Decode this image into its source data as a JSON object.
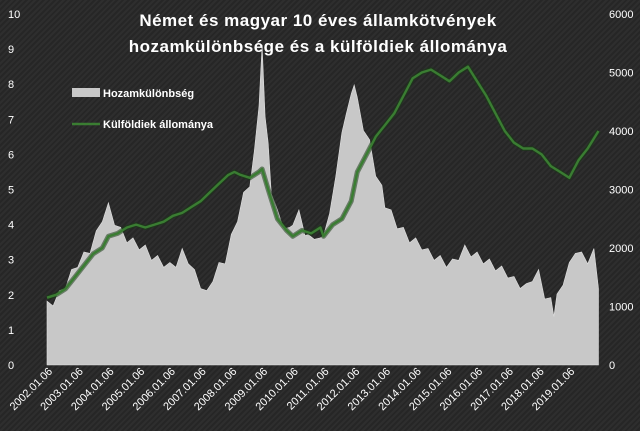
{
  "chart_data": {
    "type": "area+line",
    "title_lines": [
      "Német és magyar  10 éves államkötvények",
      "hozamkülönbsége  és a külföldiek  állománya"
    ],
    "x_ticks": [
      "2002.01.06",
      "2003.01.06",
      "2004.01.06",
      "2005.01.06",
      "2006.01.06",
      "2007.01.06",
      "2008.01.06",
      "2009.01.06",
      "2010.01.06",
      "2011.01.06",
      "2012.01.06",
      "2013.01.06",
      "2014.01.06",
      "2015.01.06",
      "2016.01.06",
      "2017.01.06",
      "2018.01.06",
      "2019.01.06"
    ],
    "y_left": {
      "min": 0,
      "max": 10,
      "ticks": [
        "0",
        "1",
        "2",
        "3",
        "4",
        "5",
        "6",
        "7",
        "8",
        "9",
        "10"
      ]
    },
    "y_right": {
      "min": 0,
      "max": 6000,
      "ticks": [
        "0",
        "1000",
        "2000",
        "3000",
        "4000",
        "5000",
        "6000"
      ]
    },
    "legend": {
      "placement": "upper-left"
    },
    "series": [
      {
        "name": "Hozamkülönbség",
        "kind": "area",
        "color": "#c8c8c8",
        "axis": "left",
        "x": [
          2002.0,
          2002.2,
          2002.4,
          2002.6,
          2002.8,
          2003.0,
          2003.2,
          2003.4,
          2003.6,
          2003.8,
          2004.0,
          2004.2,
          2004.4,
          2004.6,
          2004.8,
          2005.0,
          2005.2,
          2005.4,
          2005.6,
          2005.8,
          2006.0,
          2006.2,
          2006.4,
          2006.6,
          2006.8,
          2007.0,
          2007.2,
          2007.4,
          2007.6,
          2007.8,
          2008.0,
          2008.2,
          2008.4,
          2008.6,
          2008.75,
          2008.9,
          2009.0,
          2009.1,
          2009.2,
          2009.3,
          2009.5,
          2009.7,
          2009.9,
          2010.0,
          2010.2,
          2010.4,
          2010.5,
          2010.7,
          2010.9,
          2011.0,
          2011.2,
          2011.4,
          2011.6,
          2011.75,
          2011.9,
          2012.0,
          2012.1,
          2012.3,
          2012.5,
          2012.7,
          2012.9,
          2013.0,
          2013.2,
          2013.4,
          2013.6,
          2013.8,
          2014.0,
          2014.2,
          2014.4,
          2014.6,
          2014.8,
          2015.0,
          2015.2,
          2015.4,
          2015.6,
          2015.8,
          2016.0,
          2016.2,
          2016.4,
          2016.6,
          2016.8,
          2017.0,
          2017.2,
          2017.4,
          2017.6,
          2017.8,
          2018.0,
          2018.2,
          2018.4,
          2018.5,
          2018.6,
          2018.8,
          2019.0,
          2019.2,
          2019.4,
          2019.6,
          2019.8,
          2019.95
        ],
        "values": [
          1.7,
          1.8,
          2.0,
          2.3,
          2.6,
          2.9,
          3.1,
          3.3,
          3.7,
          4.2,
          4.5,
          4.1,
          3.8,
          3.6,
          3.5,
          3.4,
          3.3,
          3.1,
          3.0,
          2.9,
          2.8,
          2.9,
          3.2,
          3.0,
          2.6,
          2.3,
          2.0,
          2.5,
          2.8,
          3.0,
          3.6,
          4.2,
          4.8,
          5.2,
          6.0,
          7.5,
          9.0,
          7.2,
          6.2,
          5.0,
          4.3,
          4.0,
          3.8,
          4.1,
          4.3,
          3.8,
          3.6,
          3.7,
          3.5,
          3.8,
          4.2,
          5.5,
          6.5,
          7.3,
          7.6,
          8.1,
          7.5,
          6.8,
          6.3,
          5.5,
          5.0,
          4.6,
          4.3,
          4.0,
          3.8,
          3.6,
          3.5,
          3.4,
          3.2,
          3.1,
          3.0,
          2.9,
          2.9,
          3.1,
          3.3,
          3.2,
          3.1,
          3.0,
          2.9,
          2.8,
          2.7,
          2.6,
          2.4,
          2.3,
          2.2,
          2.5,
          2.6,
          2.0,
          1.8,
          1.5,
          1.9,
          2.4,
          2.8,
          3.3,
          3.1,
          3.0,
          3.2,
          2.3
        ]
      },
      {
        "name": "Külföldiek állománya",
        "kind": "line",
        "color": "#3a7d32",
        "axis": "right",
        "x": [
          2002.0,
          2002.3,
          2002.6,
          2002.9,
          2003.2,
          2003.5,
          2003.8,
          2004.0,
          2004.3,
          2004.6,
          2004.9,
          2005.2,
          2005.5,
          2005.8,
          2006.1,
          2006.4,
          2006.7,
          2007.0,
          2007.3,
          2007.6,
          2007.9,
          2008.1,
          2008.3,
          2008.6,
          2008.9,
          2009.0,
          2009.2,
          2009.5,
          2009.8,
          2010.0,
          2010.3,
          2010.6,
          2010.9,
          2011.0,
          2011.3,
          2011.6,
          2011.9,
          2012.1,
          2012.4,
          2012.7,
          2013.0,
          2013.3,
          2013.6,
          2013.9,
          2014.2,
          2014.5,
          2014.8,
          2015.1,
          2015.4,
          2015.7,
          2016.0,
          2016.3,
          2016.6,
          2016.9,
          2017.2,
          2017.5,
          2017.8,
          2018.1,
          2018.4,
          2018.7,
          2019.0,
          2019.3,
          2019.6,
          2019.95
        ],
        "values": [
          1150,
          1200,
          1300,
          1500,
          1700,
          1900,
          2000,
          2200,
          2250,
          2350,
          2400,
          2350,
          2400,
          2450,
          2550,
          2600,
          2700,
          2800,
          2950,
          3100,
          3250,
          3300,
          3250,
          3200,
          3300,
          3350,
          3000,
          2500,
          2300,
          2200,
          2300,
          2250,
          2350,
          2200,
          2400,
          2500,
          2800,
          3300,
          3600,
          3900,
          4100,
          4300,
          4600,
          4900,
          5000,
          5050,
          4950,
          4850,
          5000,
          5100,
          4850,
          4600,
          4300,
          4000,
          3800,
          3700,
          3700,
          3600,
          3400,
          3300,
          3200,
          3500,
          3700,
          4000
        ]
      }
    ]
  }
}
